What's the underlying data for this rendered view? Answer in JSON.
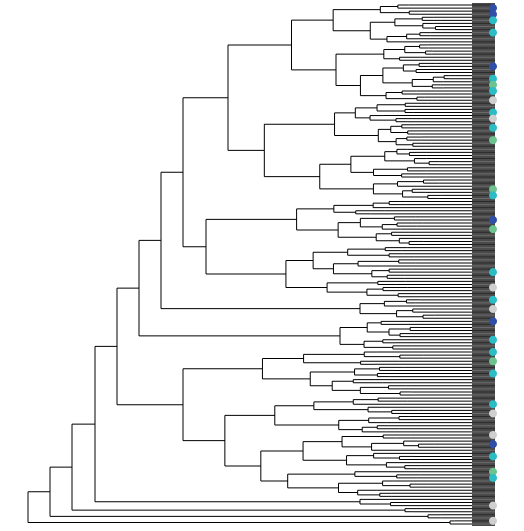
{
  "view": {
    "type": "phylogenetic-tree",
    "orientation": "left-to-right",
    "leaf_count": 170
  },
  "palette": {
    "branch": "#000000",
    "leaf_stroke": "#333333",
    "leaf_fill": "#4a4a4a",
    "background": "#ffffff"
  },
  "markers": {
    "colors": {
      "navy": "#2f4fa8",
      "teal": "#2bbcc6",
      "green": "#6cc38e",
      "gray": "#cfcfcf"
    },
    "items": [
      {
        "leaf": 1,
        "color": "navy"
      },
      {
        "leaf": 3,
        "color": "navy"
      },
      {
        "leaf": 5,
        "color": "teal"
      },
      {
        "leaf": 9,
        "color": "teal"
      },
      {
        "leaf": 20,
        "color": "navy"
      },
      {
        "leaf": 24,
        "color": "teal"
      },
      {
        "leaf": 26,
        "color": "green"
      },
      {
        "leaf": 28,
        "color": "teal"
      },
      {
        "leaf": 31,
        "color": "gray"
      },
      {
        "leaf": 35,
        "color": "teal"
      },
      {
        "leaf": 37,
        "color": "gray"
      },
      {
        "leaf": 40,
        "color": "teal"
      },
      {
        "leaf": 44,
        "color": "green"
      },
      {
        "leaf": 60,
        "color": "green"
      },
      {
        "leaf": 62,
        "color": "teal"
      },
      {
        "leaf": 70,
        "color": "navy"
      },
      {
        "leaf": 73,
        "color": "green"
      },
      {
        "leaf": 87,
        "color": "teal"
      },
      {
        "leaf": 92,
        "color": "gray"
      },
      {
        "leaf": 96,
        "color": "teal"
      },
      {
        "leaf": 99,
        "color": "gray"
      },
      {
        "leaf": 103,
        "color": "navy"
      },
      {
        "leaf": 109,
        "color": "teal"
      },
      {
        "leaf": 113,
        "color": "teal"
      },
      {
        "leaf": 116,
        "color": "green"
      },
      {
        "leaf": 120,
        "color": "teal"
      },
      {
        "leaf": 130,
        "color": "teal"
      },
      {
        "leaf": 133,
        "color": "gray"
      },
      {
        "leaf": 140,
        "color": "gray"
      },
      {
        "leaf": 143,
        "color": "navy"
      },
      {
        "leaf": 147,
        "color": "teal"
      },
      {
        "leaf": 152,
        "color": "green"
      },
      {
        "leaf": 154,
        "color": "teal"
      },
      {
        "leaf": 163,
        "color": "gray"
      },
      {
        "leaf": 168,
        "color": "gray"
      }
    ]
  }
}
